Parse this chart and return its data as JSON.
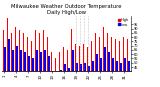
{
  "title": "Milwaukee Weather Outdoor Temperature\nDaily High/Low",
  "title_fontsize": 3.8,
  "bar_width": 0.4,
  "high_color": "#ff0000",
  "low_color": "#0000ff",
  "ylim": [
    40,
    105
  ],
  "yticks": [
    45,
    50,
    55,
    60,
    65,
    70,
    75,
    80,
    85,
    90,
    95
  ],
  "background_color": "#ffffff",
  "legend_high": "High",
  "legend_low": "Low",
  "highs": [
    88,
    102,
    85,
    92,
    88,
    85,
    80,
    75,
    88,
    85,
    88,
    80,
    62,
    55,
    62,
    68,
    65,
    90,
    72,
    70,
    72,
    68,
    75,
    85,
    80,
    92,
    85,
    80,
    78,
    75,
    80,
    78
  ],
  "lows": [
    68,
    78,
    65,
    70,
    65,
    62,
    58,
    55,
    65,
    62,
    65,
    58,
    40,
    38,
    42,
    48,
    44,
    65,
    50,
    48,
    50,
    46,
    52,
    60,
    56,
    68,
    62,
    56,
    52,
    50,
    55,
    52
  ],
  "dotted_lines": [
    18,
    19,
    20,
    21
  ],
  "xtick_step": 3,
  "xlabel_start": 1
}
